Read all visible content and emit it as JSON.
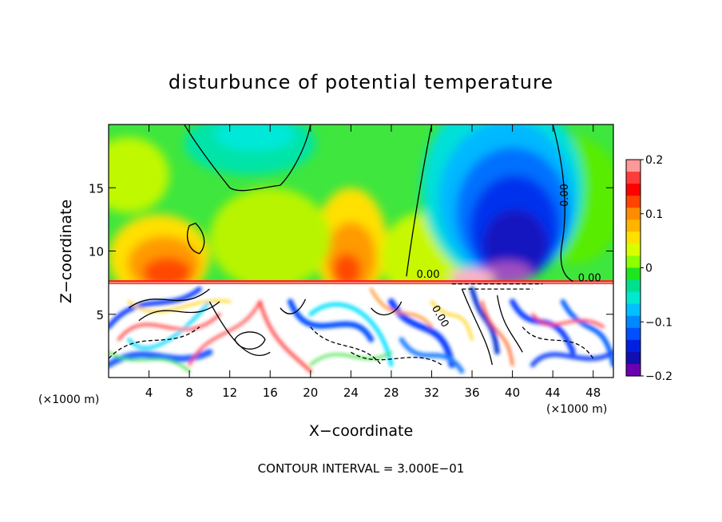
{
  "chart_data": {
    "type": "heatmap",
    "title": "disturbunce of potential temperature",
    "xlabel": "X−coordinate",
    "ylabel": "Z−coordinate",
    "x_unit": "(×1000 m)",
    "xlim": [
      0,
      50
    ],
    "ylim": [
      0,
      20
    ],
    "x_ticks": [
      4,
      8,
      12,
      16,
      20,
      24,
      28,
      32,
      36,
      40,
      44,
      48
    ],
    "y_ticks": [
      5,
      10,
      15
    ],
    "colorbar": {
      "range": [
        -0.2,
        0.2
      ],
      "ticks": [
        "0.2",
        "0.1",
        "0",
        "−0.1",
        "−0.2"
      ],
      "tick_values": [
        0.2,
        0.1,
        0,
        -0.1,
        -0.2
      ],
      "colors": [
        "#ff9999",
        "#ff3b3b",
        "#ff0000",
        "#ff4400",
        "#ff8c00",
        "#ffb400",
        "#ffe000",
        "#d8ff00",
        "#8cff00",
        "#1ee61e",
        "#00e08c",
        "#00e8d0",
        "#00c0ff",
        "#0088ff",
        "#0050ff",
        "#0020e0",
        "#1010b0",
        "#6a00b0"
      ]
    },
    "contour_labels": [
      "0.00",
      "0.00",
      "0.00",
      "0.00"
    ],
    "footnote": "CONTOUR INTERVAL = 3.000E−01"
  }
}
